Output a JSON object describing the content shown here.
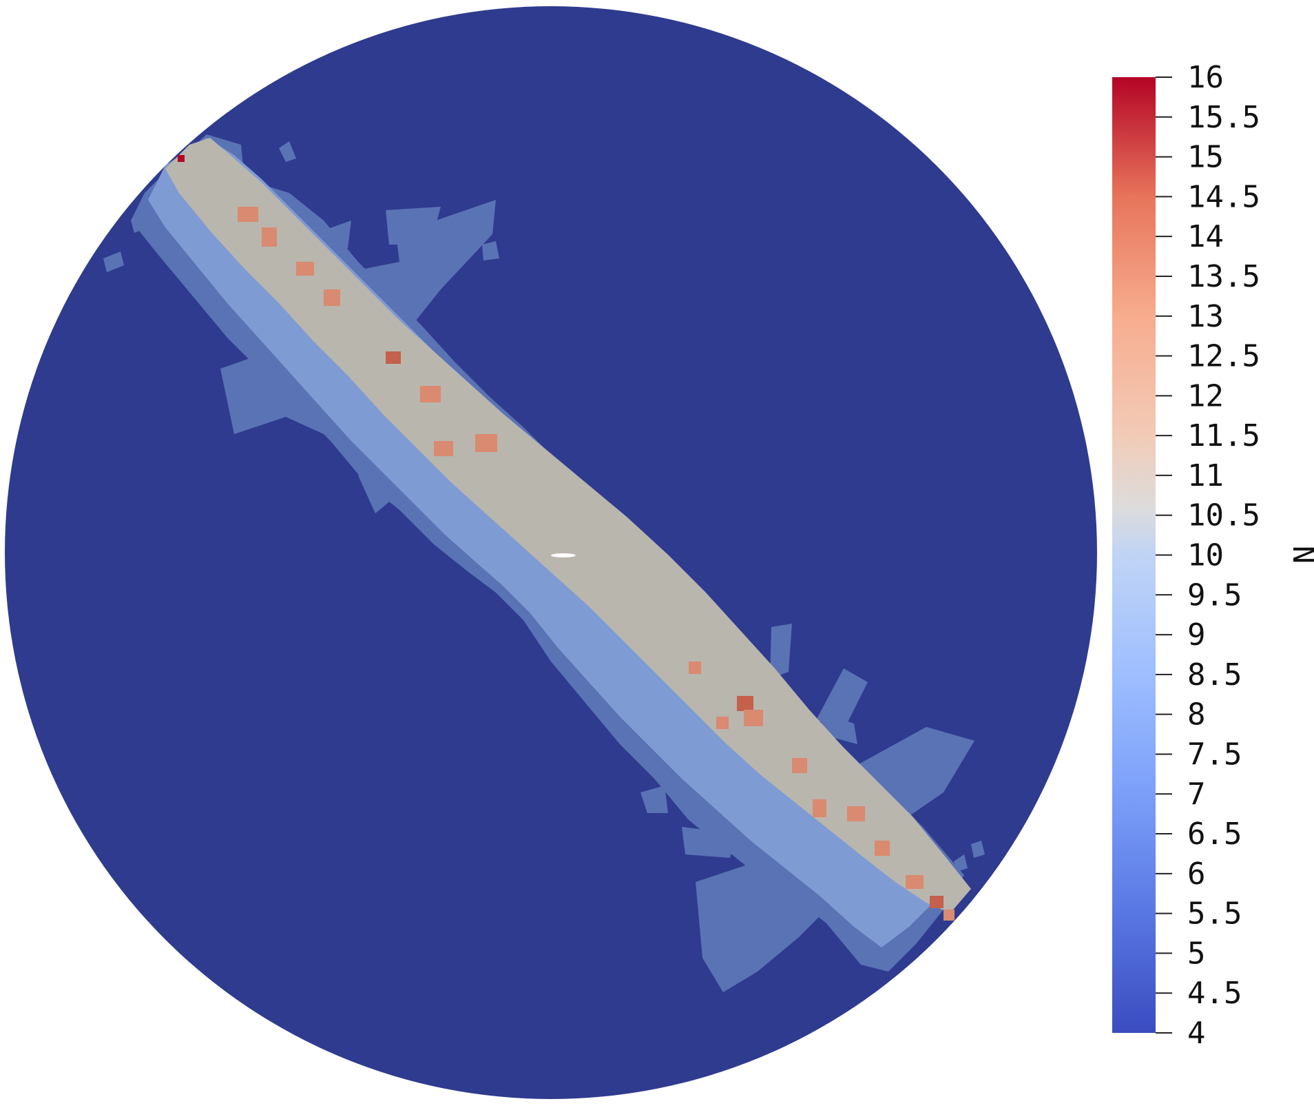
{
  "colorbar": {
    "title": "N",
    "min": 4,
    "max": 16,
    "ticks": [
      "16",
      "15.5",
      "15",
      "14.5",
      "14",
      "13.5",
      "13",
      "12.5",
      "12",
      "11.5",
      "11",
      "10.5",
      "10",
      "9.5",
      "9",
      "8.5",
      "8",
      "7.5",
      "7",
      "6.5",
      "6",
      "5.5",
      "5",
      "4.5",
      "4"
    ],
    "colormap": "coolwarm",
    "colors": {
      "low": "#3b4cc0",
      "mid": "#dddddd",
      "high": "#b40426"
    }
  },
  "field": {
    "background_value": 4,
    "band_value": 10,
    "halo_value": 6,
    "hot_value": 13.5,
    "max_value": 16,
    "colors": {
      "background": "#2f3b8f",
      "halo": "#5a73b5",
      "halo_light": "#7f9bd3",
      "band": "#b9b6ae",
      "hot": "#d98a70",
      "hotter": "#c4604c",
      "max": "#b40426"
    }
  }
}
